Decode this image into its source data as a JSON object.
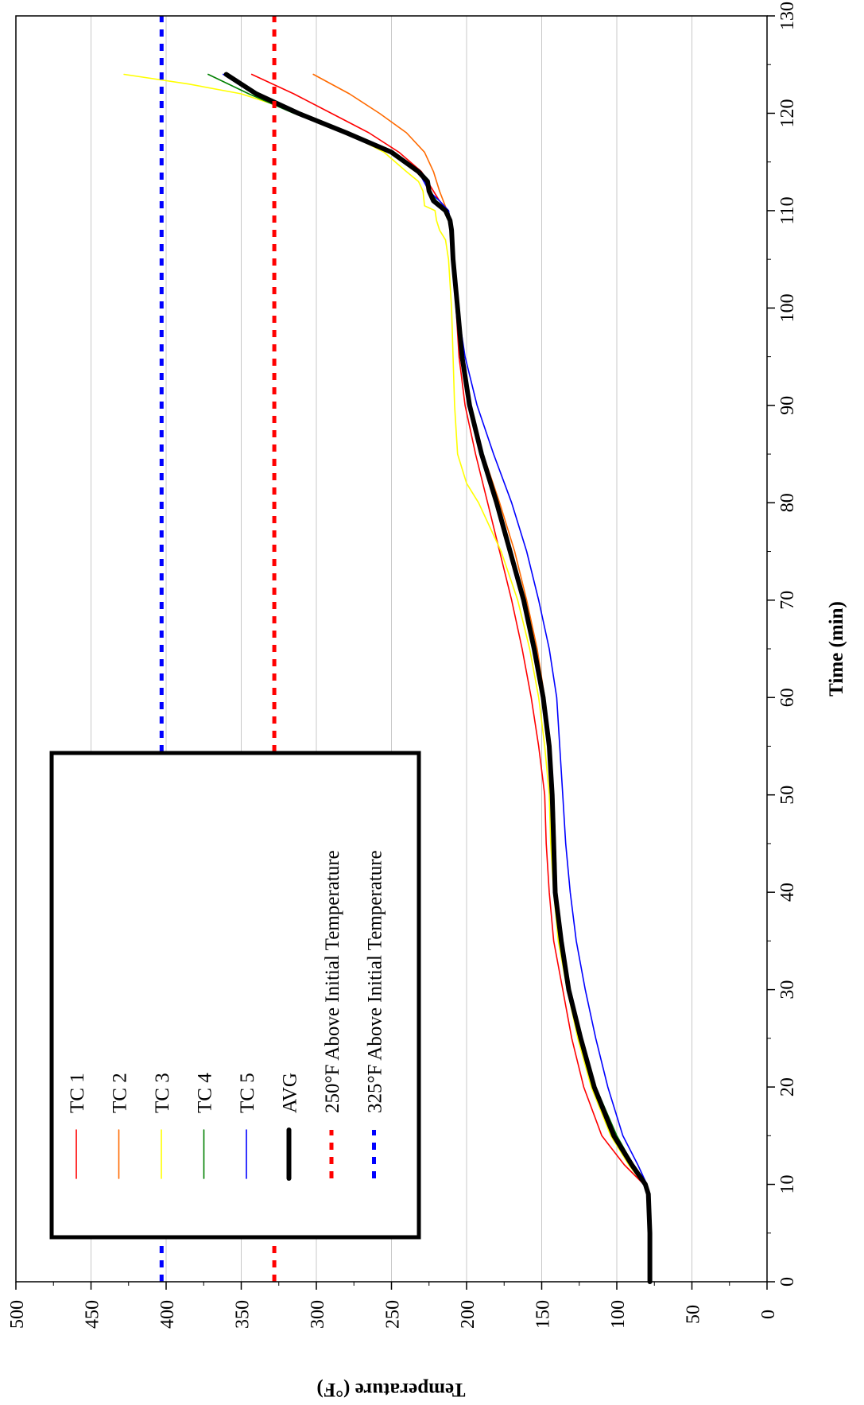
{
  "chart_data": {
    "type": "line",
    "title": "",
    "xlabel": "Time (min)",
    "ylabel": "Temperature (°F)",
    "xlim": [
      0,
      130
    ],
    "ylim": [
      0,
      500
    ],
    "x_ticks": [
      0,
      10,
      20,
      30,
      40,
      50,
      60,
      70,
      80,
      90,
      100,
      110,
      120,
      130
    ],
    "y_ticks": [
      0,
      50,
      100,
      150,
      200,
      250,
      300,
      350,
      400,
      450,
      500
    ],
    "grid": "horizontal gridlines at each 50 °F",
    "orientation": "rotated 90° (time axis runs vertically)",
    "legend_position": "inside-left",
    "series": [
      {
        "name": "TC 1",
        "color": "#ff0000",
        "width": 1.6,
        "dash": "",
        "x": [
          0,
          5,
          9,
          10,
          12,
          15,
          20,
          25,
          30,
          35,
          40,
          45,
          50,
          55,
          60,
          65,
          70,
          75,
          80,
          85,
          90,
          95,
          100,
          105,
          108,
          110,
          111,
          112,
          114,
          116,
          118,
          120,
          122,
          124
        ],
        "y": [
          78,
          78,
          79,
          82,
          95,
          110,
          122,
          130,
          136,
          142,
          145,
          147,
          148,
          152,
          157,
          163,
          170,
          178,
          186,
          194,
          201,
          205,
          207,
          209,
          210,
          212,
          218,
          222,
          230,
          245,
          265,
          290,
          315,
          343
        ]
      },
      {
        "name": "TC 2",
        "color": "#ff6a00",
        "width": 1.6,
        "dash": "",
        "x": [
          0,
          5,
          9,
          10,
          12,
          15,
          20,
          25,
          30,
          35,
          40,
          45,
          50,
          55,
          60,
          65,
          70,
          75,
          80,
          85,
          90,
          95,
          100,
          105,
          108,
          110,
          112,
          114,
          116,
          118,
          120,
          122,
          124
        ],
        "y": [
          78,
          78,
          79,
          81,
          90,
          102,
          115,
          124,
          131,
          137,
          140,
          141,
          142,
          145,
          148,
          153,
          160,
          168,
          178,
          189,
          198,
          204,
          207,
          209,
          210,
          213,
          218,
          222,
          228,
          240,
          258,
          278,
          302
        ]
      },
      {
        "name": "TC 3",
        "color": "#ffff00",
        "width": 1.6,
        "dash": "",
        "x": [
          0,
          5,
          9,
          10,
          12,
          15,
          20,
          25,
          30,
          35,
          40,
          45,
          50,
          55,
          60,
          65,
          70,
          75,
          80,
          82,
          85,
          90,
          95,
          100,
          105,
          107,
          108,
          109,
          110,
          110.5,
          112,
          113,
          114,
          116,
          118,
          120,
          122,
          123,
          124
        ],
        "y": [
          78,
          78,
          79,
          82,
          92,
          104,
          117,
          126,
          133,
          139,
          142,
          144,
          145,
          148,
          152,
          158,
          166,
          177,
          192,
          200,
          206,
          208,
          209,
          210,
          212,
          214,
          218,
          220,
          221,
          228,
          229,
          232,
          240,
          255,
          280,
          310,
          350,
          385,
          428
        ]
      },
      {
        "name": "TC 4",
        "color": "#008000",
        "width": 1.6,
        "dash": "",
        "x": [
          0,
          5,
          9,
          10,
          12,
          15,
          20,
          25,
          30,
          35,
          40,
          45,
          50,
          55,
          60,
          65,
          70,
          75,
          80,
          85,
          90,
          95,
          100,
          105,
          108,
          110,
          111,
          112,
          114,
          116,
          118,
          120,
          122,
          124
        ],
        "y": [
          78,
          78,
          79,
          81,
          89,
          100,
          114,
          124,
          131,
          137,
          140,
          141,
          142,
          144,
          148,
          155,
          163,
          172,
          181,
          191,
          199,
          204,
          207,
          209,
          210,
          212,
          220,
          224,
          231,
          250,
          280,
          315,
          345,
          372
        ]
      },
      {
        "name": "TC 5",
        "color": "#0000ff",
        "width": 1.6,
        "dash": "",
        "x": [
          0,
          5,
          9,
          10,
          12,
          15,
          20,
          25,
          30,
          35,
          40,
          45,
          50,
          55,
          60,
          65,
          70,
          75,
          80,
          85,
          90,
          95,
          100,
          105,
          108,
          110,
          111,
          112,
          114,
          116,
          118,
          120,
          122,
          124
        ],
        "y": [
          78,
          78,
          79,
          80,
          86,
          96,
          106,
          114,
          121,
          127,
          131,
          134,
          136,
          138,
          140,
          145,
          152,
          160,
          170,
          182,
          193,
          201,
          206,
          209,
          210,
          212,
          218,
          225,
          232,
          250,
          278,
          312,
          342,
          362
        ]
      },
      {
        "name": "AVG",
        "color": "#000000",
        "width": 6,
        "dash": "",
        "x": [
          0,
          5,
          9,
          10,
          12,
          15,
          20,
          25,
          30,
          35,
          40,
          45,
          50,
          55,
          60,
          65,
          70,
          75,
          80,
          85,
          90,
          95,
          100,
          105,
          108,
          109,
          110,
          111,
          112,
          113,
          114,
          116,
          118,
          120,
          122,
          124
        ],
        "y": [
          78,
          78,
          79,
          81,
          90,
          102,
          115,
          124,
          132,
          137,
          141,
          142,
          143,
          145,
          149,
          155,
          162,
          171,
          180,
          190,
          198,
          203,
          206,
          209,
          210,
          211,
          214,
          222,
          225,
          226,
          232,
          250,
          280,
          312,
          340,
          360
        ]
      },
      {
        "name": "250°F Above Initial Temperature",
        "color": "#ff0000",
        "width": 5,
        "dash": "9,9",
        "x": [
          0,
          130
        ],
        "y": [
          328,
          328
        ]
      },
      {
        "name": "325°F Above Initial Temperature",
        "color": "#0000ff",
        "width": 5,
        "dash": "9,9",
        "x": [
          0,
          130
        ],
        "y": [
          403,
          403
        ]
      }
    ]
  }
}
